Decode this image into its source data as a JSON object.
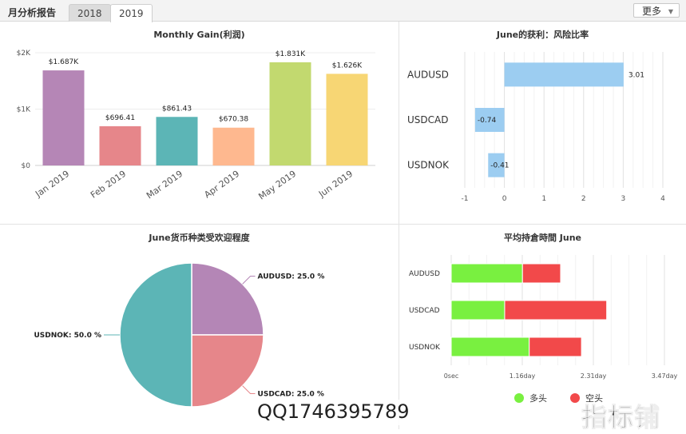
{
  "header": {
    "title": "月分析报告",
    "tabs": [
      {
        "label": "2018"
      },
      {
        "label": "2019"
      }
    ],
    "more_label": "更多"
  },
  "colors": {
    "bars": [
      "#b586b6",
      "#e6868a",
      "#5cb5b6",
      "#feb88f",
      "#c2d96f",
      "#f7d674"
    ],
    "hbar": "#9ccdf1",
    "pie": [
      "#b486b6",
      "#e6868a",
      "#5cb5b6"
    ],
    "long": "#79f040",
    "short": "#f2494a"
  },
  "chart_data": [
    {
      "type": "bar",
      "title": "Monthly Gain(利润)",
      "categories": [
        "Jan 2019",
        "Feb 2019",
        "Mar 2019",
        "Apr 2019",
        "May 2019",
        "Jun 2019"
      ],
      "values": [
        1687,
        696.41,
        861.43,
        670.38,
        1831,
        1626
      ],
      "data_labels": [
        "$1.687K",
        "$696.41",
        "$861.43",
        "$670.38",
        "$1.831K",
        "$1.626K"
      ],
      "yticks": [
        {
          "value": 0,
          "label": "$0"
        },
        {
          "value": 1000,
          "label": "$1K"
        },
        {
          "value": 2000,
          "label": "$2K"
        }
      ],
      "ylim": [
        0,
        2000
      ]
    },
    {
      "type": "bar",
      "orientation": "horizontal",
      "title": "June的获利：风险比率",
      "categories": [
        "AUDUSD",
        "USDCAD",
        "USDNOK"
      ],
      "values": [
        3.01,
        -0.74,
        -0.41
      ],
      "data_labels": [
        "3.01",
        "-0.74",
        "-0.41"
      ],
      "xticks": [
        "-1",
        "0",
        "1",
        "2",
        "3",
        "4"
      ],
      "xlim": [
        -1,
        4
      ]
    },
    {
      "type": "pie",
      "title": "June货币种类受欢迎程度",
      "slices": [
        {
          "label": "AUDUSD: 25.0 %",
          "value": 25.0
        },
        {
          "label": "USDCAD: 25.0 %",
          "value": 25.0
        },
        {
          "label": "USDNOK: 50.0 %",
          "value": 50.0
        }
      ]
    },
    {
      "type": "bar",
      "orientation": "horizontal",
      "stacked": true,
      "title": "平均持倉時間 June",
      "categories": [
        "AUDUSD",
        "USDCAD",
        "USDNOK"
      ],
      "series": [
        {
          "name": "多头",
          "values": [
            1.16,
            0.87,
            1.27
          ]
        },
        {
          "name": "空头",
          "values": [
            0.62,
            1.66,
            0.85
          ]
        }
      ],
      "xticks": [
        "0sec",
        "1.16day",
        "2.31day",
        "3.47day"
      ],
      "xlim": [
        0,
        3.47
      ],
      "legend_position": "bottom"
    }
  ],
  "watermark": {
    "contact": "QQ1746395789",
    "brand": "指标铺"
  }
}
